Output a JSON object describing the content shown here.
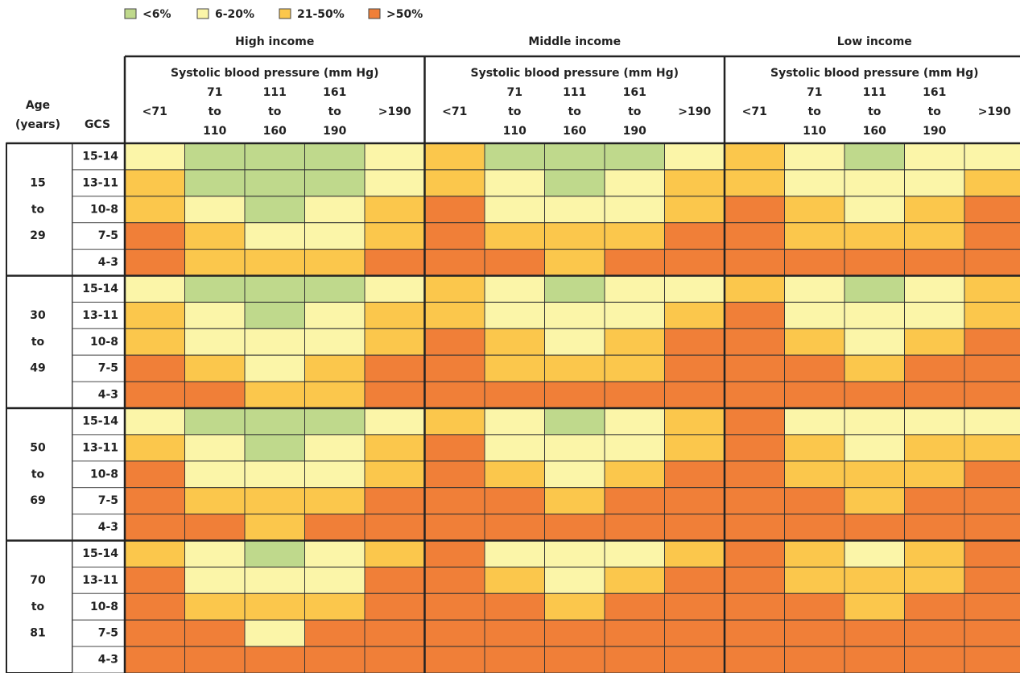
{
  "legend": [
    {
      "label": "<6%",
      "color": "#bfd98c"
    },
    {
      "label": "6-20%",
      "color": "#fbf5a8"
    },
    {
      "label": "21-50%",
      "color": "#fbc74c"
    },
    {
      "label": ">50%",
      "color": "#f07f38"
    }
  ],
  "header": {
    "age_label": [
      "Age",
      "(years)"
    ],
    "gcs_label": "GCS",
    "sbp_title": "Systolic blood pressure (mm Hg)",
    "columns": [
      [
        "<71"
      ],
      [
        "71",
        "to",
        "110"
      ],
      [
        "111",
        "to",
        "160"
      ],
      [
        "161",
        "to",
        "190"
      ],
      [
        ">190"
      ]
    ]
  },
  "groups": [
    "High income",
    "Middle income",
    "Low income"
  ],
  "age_groups": [
    {
      "label": [
        "15",
        "to",
        "29"
      ],
      "rows": [
        {
          "gcs": "15-14",
          "cells": [
            1,
            0,
            0,
            0,
            1,
            2,
            0,
            0,
            0,
            1,
            2,
            1,
            0,
            1,
            1
          ]
        },
        {
          "gcs": "13-11",
          "cells": [
            2,
            0,
            0,
            0,
            1,
            2,
            1,
            0,
            1,
            2,
            2,
            1,
            1,
            1,
            2
          ]
        },
        {
          "gcs": "10-8",
          "cells": [
            2,
            1,
            0,
            1,
            2,
            3,
            1,
            1,
            1,
            2,
            3,
            2,
            1,
            2,
            3
          ]
        },
        {
          "gcs": "7-5",
          "cells": [
            3,
            2,
            1,
            1,
            2,
            3,
            2,
            2,
            2,
            3,
            3,
            2,
            2,
            2,
            3
          ]
        },
        {
          "gcs": "4-3",
          "cells": [
            3,
            2,
            2,
            2,
            3,
            3,
            3,
            2,
            3,
            3,
            3,
            3,
            3,
            3,
            3
          ]
        }
      ]
    },
    {
      "label": [
        "30",
        "to",
        "49"
      ],
      "rows": [
        {
          "gcs": "15-14",
          "cells": [
            1,
            0,
            0,
            0,
            1,
            2,
            1,
            0,
            1,
            1,
            2,
            1,
            0,
            1,
            2
          ]
        },
        {
          "gcs": "13-11",
          "cells": [
            2,
            1,
            0,
            1,
            2,
            2,
            1,
            1,
            1,
            2,
            3,
            1,
            1,
            1,
            2
          ]
        },
        {
          "gcs": "10-8",
          "cells": [
            2,
            1,
            1,
            1,
            2,
            3,
            2,
            1,
            2,
            3,
            3,
            2,
            1,
            2,
            3
          ]
        },
        {
          "gcs": "7-5",
          "cells": [
            3,
            2,
            1,
            2,
            3,
            3,
            2,
            2,
            2,
            3,
            3,
            3,
            2,
            3,
            3
          ]
        },
        {
          "gcs": "4-3",
          "cells": [
            3,
            3,
            2,
            2,
            3,
            3,
            3,
            3,
            3,
            3,
            3,
            3,
            3,
            3,
            3
          ]
        }
      ]
    },
    {
      "label": [
        "50",
        "to",
        "69"
      ],
      "rows": [
        {
          "gcs": "15-14",
          "cells": [
            1,
            0,
            0,
            0,
            1,
            2,
            1,
            0,
            1,
            2,
            3,
            1,
            1,
            1,
            1
          ]
        },
        {
          "gcs": "13-11",
          "cells": [
            2,
            1,
            0,
            1,
            2,
            3,
            1,
            1,
            1,
            2,
            3,
            2,
            1,
            2,
            2
          ]
        },
        {
          "gcs": "10-8",
          "cells": [
            3,
            1,
            1,
            1,
            2,
            3,
            2,
            1,
            2,
            3,
            3,
            2,
            2,
            2,
            3
          ]
        },
        {
          "gcs": "7-5",
          "cells": [
            3,
            2,
            2,
            2,
            3,
            3,
            3,
            2,
            3,
            3,
            3,
            3,
            2,
            3,
            3
          ]
        },
        {
          "gcs": "4-3",
          "cells": [
            3,
            3,
            2,
            3,
            3,
            3,
            3,
            3,
            3,
            3,
            3,
            3,
            3,
            3,
            3
          ]
        }
      ]
    },
    {
      "label": [
        "70",
        "to",
        "81"
      ],
      "rows": [
        {
          "gcs": "15-14",
          "cells": [
            2,
            1,
            0,
            1,
            2,
            3,
            1,
            1,
            1,
            2,
            3,
            2,
            1,
            2,
            3
          ]
        },
        {
          "gcs": "13-11",
          "cells": [
            3,
            1,
            1,
            1,
            3,
            3,
            2,
            1,
            2,
            3,
            3,
            2,
            2,
            2,
            3
          ]
        },
        {
          "gcs": "10-8",
          "cells": [
            3,
            2,
            2,
            2,
            3,
            3,
            3,
            2,
            3,
            3,
            3,
            3,
            2,
            3,
            3
          ]
        },
        {
          "gcs": "7-5",
          "cells": [
            3,
            3,
            1,
            3,
            3,
            3,
            3,
            3,
            3,
            3,
            3,
            3,
            3,
            3,
            3
          ]
        },
        {
          "gcs": "4-3",
          "cells": [
            3,
            3,
            3,
            3,
            3,
            3,
            3,
            3,
            3,
            3,
            3,
            3,
            3,
            3,
            3
          ]
        }
      ]
    }
  ]
}
